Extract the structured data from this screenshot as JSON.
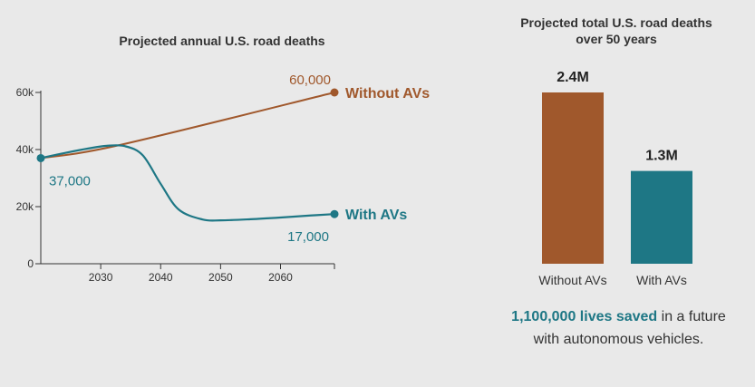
{
  "chart_data": [
    {
      "type": "line",
      "title": "Projected annual U.S. road deaths",
      "xlabel": "",
      "ylabel": "",
      "x_ticks": [
        2030,
        2040,
        2050,
        2060
      ],
      "y_ticks": [
        0,
        20000,
        40000,
        60000
      ],
      "y_tick_labels": [
        "0",
        "20k",
        "40k",
        "60k"
      ],
      "xlim": [
        2020,
        2069
      ],
      "ylim": [
        0,
        60000
      ],
      "series": [
        {
          "name": "Without AVs",
          "color": "#a0582c",
          "x": [
            2020,
            2033,
            2069
          ],
          "values": [
            37000,
            41500,
            60000
          ],
          "end_value_label": "60,000"
        },
        {
          "name": "With AVs",
          "color": "#1e7785",
          "x": [
            2020,
            2024,
            2028,
            2031,
            2034,
            2037,
            2040,
            2043,
            2047,
            2050,
            2055,
            2060,
            2065,
            2069
          ],
          "values": [
            37000,
            38800,
            40400,
            41300,
            41200,
            38000,
            28000,
            19000,
            15500,
            15200,
            15600,
            16200,
            16900,
            17400
          ],
          "start_value_label": "37,000",
          "end_value_label": "17,000"
        }
      ]
    },
    {
      "type": "bar",
      "title": "Projected total U.S. road deaths over 50 years",
      "title_line1": "Projected total U.S. road deaths",
      "title_line2": "over 50 years",
      "categories": [
        "Without AVs",
        "With AVs"
      ],
      "values": [
        2.4,
        1.3
      ],
      "value_labels": [
        "2.4M",
        "1.3M"
      ],
      "colors": [
        "#a0582c",
        "#1e7785"
      ],
      "ylim": [
        0,
        2.4
      ]
    }
  ],
  "footnote": {
    "highlight": "1,100,000 lives saved",
    "rest": " in a future with autonomous vehicles."
  }
}
